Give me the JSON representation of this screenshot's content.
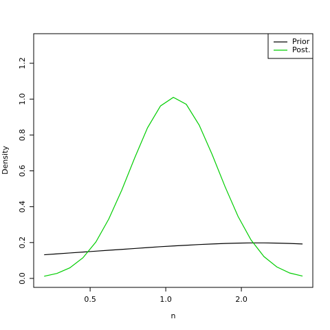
{
  "chart_data": {
    "type": "line",
    "xlabel": "n",
    "ylabel": "Density",
    "xlog": true,
    "x": [
      0.328,
      0.369,
      0.415,
      0.468,
      0.527,
      0.593,
      0.668,
      0.752,
      0.846,
      0.953,
      1.072,
      1.207,
      1.359,
      1.53,
      1.723,
      1.94,
      2.184,
      2.459,
      2.768,
      3.117,
      3.504
    ],
    "series": [
      {
        "name": "Prior",
        "color": "#000000",
        "values": [
          0.132,
          0.137,
          0.142,
          0.147,
          0.152,
          0.157,
          0.162,
          0.167,
          0.172,
          0.177,
          0.181,
          0.185,
          0.189,
          0.192,
          0.195,
          0.197,
          0.198,
          0.198,
          0.197,
          0.195,
          0.192
        ]
      },
      {
        "name": "Post.",
        "color": "#00cd00",
        "values": [
          0.012,
          0.028,
          0.059,
          0.115,
          0.203,
          0.331,
          0.492,
          0.672,
          0.84,
          0.962,
          1.01,
          0.971,
          0.855,
          0.691,
          0.511,
          0.346,
          0.215,
          0.122,
          0.064,
          0.03,
          0.013
        ]
      }
    ],
    "xlim": [
      0.298,
      3.85
    ],
    "xticks": [
      0.5,
      {
        "value": 1,
        "label": "1.0"
      },
      {
        "value": 2,
        "label": "2.0"
      }
    ],
    "ylim": [
      -0.05,
      1.365
    ],
    "yticks": [
      {
        "value": 0,
        "label": "0.0"
      },
      0.2,
      0.4,
      0.6,
      0.8,
      {
        "value": 1,
        "label": "1.0"
      },
      1.2
    ],
    "legend": "top-right"
  }
}
